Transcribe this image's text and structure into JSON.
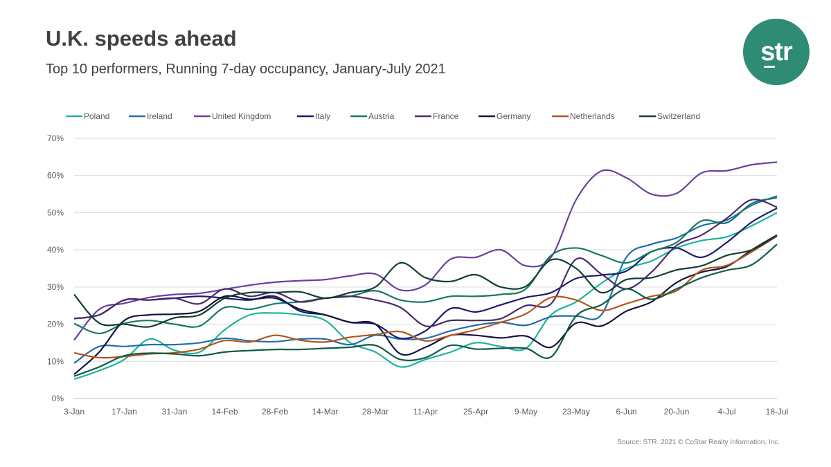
{
  "header": {
    "title": "U.K. speeds ahead",
    "subtitle": "Top 10 performers, Running 7-day occupancy, January-July 2021"
  },
  "logo": {
    "text": "str",
    "color": "#2e8b74"
  },
  "footer": {
    "source": "Source: STR. 2021 © CoStar Realty Information, Inc."
  },
  "chart_data": {
    "type": "line",
    "x": [
      "3-Jan",
      "10-Jan",
      "17-Jan",
      "24-Jan",
      "31-Jan",
      "7-Feb",
      "14-Feb",
      "21-Feb",
      "28-Feb",
      "7-Mar",
      "14-Mar",
      "21-Mar",
      "28-Mar",
      "4-Apr",
      "11-Apr",
      "18-Apr",
      "25-Apr",
      "2-May",
      "9-May",
      "16-May",
      "23-May",
      "30-May",
      "6-Jun",
      "13-Jun",
      "20-Jun",
      "27-Jun",
      "4-Jul",
      "11-Jul",
      "18-Jul"
    ],
    "xticks": [
      "3-Jan",
      "17-Jan",
      "31-Jan",
      "14-Feb",
      "28-Feb",
      "14-Mar",
      "28-Mar",
      "11-Apr",
      "25-Apr",
      "9-May",
      "23-May",
      "6-Jun",
      "20-Jun",
      "4-Jul",
      "18-Jul"
    ],
    "yticks": [
      "0%",
      "10%",
      "20%",
      "30%",
      "40%",
      "50%",
      "60%",
      "70%"
    ],
    "ylim": [
      0,
      70
    ],
    "legend_position": "top",
    "grid": true,
    "series": [
      {
        "name": "Poland",
        "color": "#1fb39a",
        "values": [
          5.2,
          7.5,
          10.5,
          16,
          13,
          12.5,
          18.5,
          22.5,
          23,
          22.5,
          21,
          15,
          12.5,
          8.5,
          10.5,
          12.5,
          15,
          14,
          13.5,
          22.5,
          26,
          31,
          35,
          37,
          40.5,
          42.5,
          43.5,
          46.5,
          50
        ]
      },
      {
        "name": "Ireland",
        "color": "#1f6fa8",
        "values": [
          9.5,
          14,
          14,
          14.5,
          14.5,
          15,
          16.2,
          15.5,
          15.3,
          16,
          16,
          14.5,
          17,
          16,
          16.2,
          18.2,
          19.7,
          20.5,
          19.7,
          22,
          22.2,
          22.5,
          38,
          41.5,
          43.2,
          46.5,
          48,
          52,
          54.5
        ]
      },
      {
        "name": "United Kingdom",
        "color": "#6b3fa0",
        "values": [
          15.7,
          24,
          25.6,
          27.2,
          28,
          28.3,
          29.4,
          30.5,
          31.3,
          31.7,
          32,
          33,
          33.5,
          29.2,
          30.6,
          37.5,
          38,
          40,
          35.7,
          38,
          53.5,
          61.2,
          59.4,
          55,
          55.2,
          60.7,
          61.3,
          62.9,
          63.6
        ]
      },
      {
        "name": "Italy",
        "color": "#1a1a6e",
        "values": [
          21.5,
          22.5,
          26.5,
          26.5,
          27,
          27.5,
          27,
          26.5,
          27.5,
          23.5,
          22.5,
          20.5,
          20,
          16.2,
          18.2,
          24.2,
          23.3,
          25.2,
          27.2,
          28.5,
          32.3,
          33.2,
          34.3,
          39.5,
          40.5,
          38,
          42,
          47.5,
          51.2
        ]
      },
      {
        "name": "Austria",
        "color": "#147a63",
        "values": [
          20.2,
          17.5,
          20.2,
          21,
          20,
          19.5,
          24.5,
          24,
          25.5,
          26,
          27,
          27.5,
          29,
          26.5,
          26,
          27.5,
          27.5,
          28,
          29.5,
          38.5,
          40.5,
          38.5,
          36.5,
          39.5,
          42,
          47.8,
          47.3,
          52.5,
          54
        ]
      },
      {
        "name": "France",
        "color": "#4a2a6a",
        "values": [
          21.5,
          22.5,
          26.5,
          26.5,
          27,
          25.5,
          29.5,
          27.5,
          28.5,
          26,
          27,
          27.5,
          26.5,
          24.5,
          19.5,
          21,
          21,
          21.5,
          25,
          25.5,
          37.5,
          33.5,
          29.5,
          34,
          41.2,
          44,
          48.5,
          53.5,
          51.5
        ]
      },
      {
        "name": "Germany",
        "color": "#141440",
        "values": [
          6.5,
          12.5,
          21,
          22.5,
          22.7,
          23.5,
          27.5,
          26.7,
          27,
          24,
          22.5,
          20.5,
          20,
          12,
          13.8,
          17,
          17,
          16.3,
          16.8,
          13.8,
          20.3,
          19.5,
          23.5,
          26,
          31.2,
          34,
          35.5,
          40,
          44
        ]
      },
      {
        "name": "Netherlands",
        "color": "#b5541c",
        "values": [
          12.3,
          11,
          11.3,
          12,
          12.3,
          13.3,
          15.6,
          15.2,
          17,
          15.7,
          15.2,
          16.5,
          17.2,
          18,
          15.5,
          17,
          18.5,
          20.5,
          22.8,
          27.2,
          26.5,
          23.7,
          25.5,
          27.5,
          29,
          34.5,
          35.8,
          39.5,
          43.7
        ]
      },
      {
        "name": "Switzerland",
        "color": "#123f2f",
        "values": [
          28,
          20.3,
          20,
          19.3,
          21.7,
          22.5,
          27,
          28.5,
          28.5,
          28.7,
          27,
          28.5,
          30,
          36.5,
          32.5,
          31.5,
          33.3,
          30,
          30.2,
          37.3,
          35,
          28.5,
          32,
          32.5,
          34.6,
          35.7,
          38.5,
          40,
          43.9
        ]
      },
      {
        "name": "",
        "color": "#0d5c48",
        "values": [
          6,
          8.5,
          11.5,
          12.2,
          12,
          11.5,
          12.5,
          12.9,
          13.2,
          13.2,
          13.5,
          13.8,
          14.3,
          10.5,
          11,
          14.3,
          13.3,
          13.5,
          13.5,
          11.2,
          22.2,
          25.2,
          29.5,
          26.7,
          29.5,
          32.5,
          34.5,
          36,
          41.5
        ]
      }
    ]
  }
}
